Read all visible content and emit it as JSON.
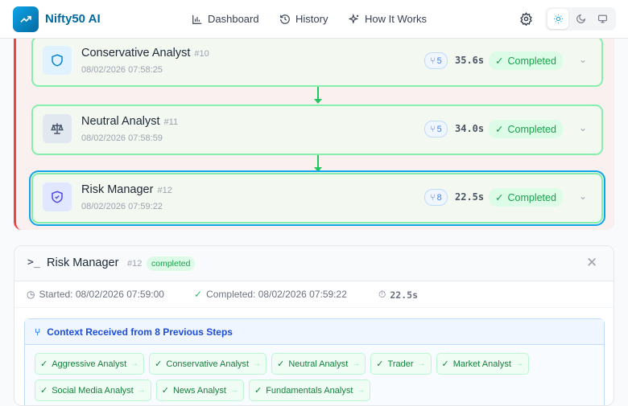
{
  "app": {
    "title": "Nifty50 AI"
  },
  "nav": {
    "links": [
      {
        "label": "Dashboard",
        "icon": "bar-chart-icon"
      },
      {
        "label": "History",
        "icon": "history-icon"
      },
      {
        "label": "How It Works",
        "icon": "sparkles-icon"
      }
    ],
    "theme_options": [
      "light",
      "dark",
      "system"
    ],
    "theme_selected": "light"
  },
  "steps": [
    {
      "name": "Conservative Analyst",
      "num": "#10",
      "date": "08/02/2026 07:58:25",
      "context_count": "5",
      "duration": "35.6s",
      "status": "Completed",
      "icon": "shield-icon"
    },
    {
      "name": "Neutral Analyst",
      "num": "#11",
      "date": "08/02/2026 07:58:59",
      "context_count": "5",
      "duration": "34.0s",
      "status": "Completed",
      "icon": "scale-icon"
    },
    {
      "name": "Risk Manager",
      "num": "#12",
      "date": "08/02/2026 07:59:22",
      "context_count": "8",
      "duration": "22.5s",
      "status": "Completed",
      "icon": "shield-check-icon",
      "selected": true
    }
  ],
  "detail": {
    "title": "Risk Manager",
    "num": "#12",
    "status": "completed",
    "started": "Started: 08/02/2026 07:59:00",
    "completed": "Completed: 08/02/2026 07:59:22",
    "duration": "22.5s",
    "context": {
      "title": "Context Received from 8 Previous Steps",
      "items": [
        "Aggressive Analyst",
        "Conservative Analyst",
        "Neutral Analyst",
        "Trader",
        "Market Analyst",
        "Social Media Analyst",
        "News Analyst",
        "Fundamentals Analyst"
      ]
    }
  },
  "colors": {
    "accent": "#0369a1",
    "success": "#16a34a",
    "selected": "#0ea5e9",
    "flow_border": "#ef4444"
  }
}
